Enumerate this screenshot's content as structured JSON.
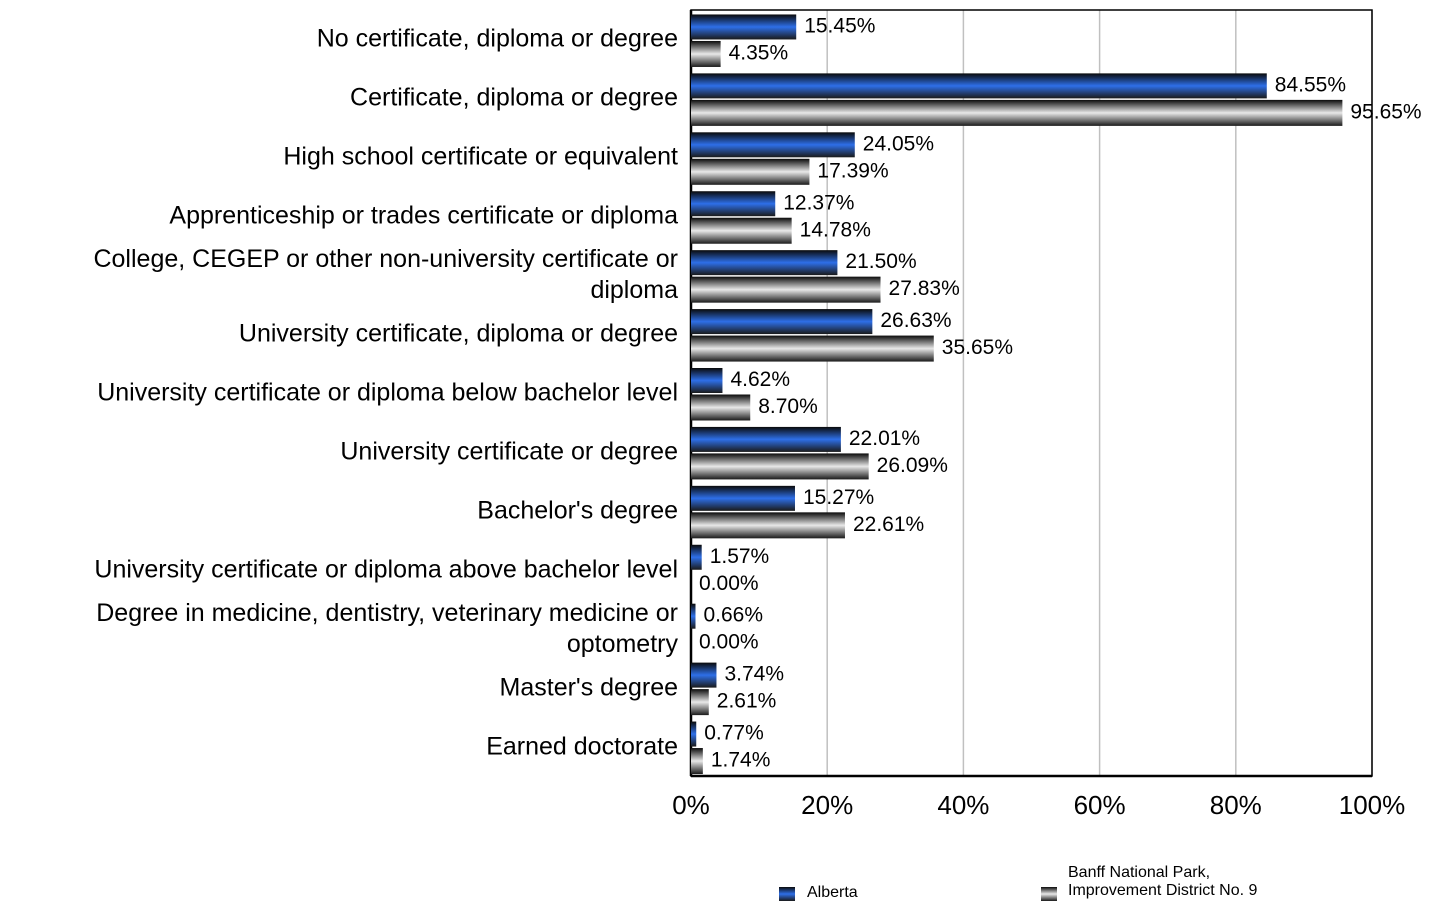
{
  "chart_data": {
    "type": "bar",
    "orientation": "horizontal",
    "categories": [
      "No certificate, diploma or degree",
      "Certificate, diploma or degree",
      "High school certificate or equivalent",
      "Apprenticeship or trades certificate or diploma",
      "College, CEGEP or other non-university certificate or diploma",
      "University certificate, diploma or degree",
      "University certificate or diploma below bachelor level",
      "University certificate or degree",
      "Bachelor's degree",
      "University certificate or diploma above bachelor level",
      "Degree in medicine, dentistry, veterinary medicine or optometry",
      "Master's degree",
      "Earned doctorate"
    ],
    "series": [
      {
        "name": "Alberta",
        "color": "#2e6fe8",
        "values": [
          15.45,
          84.55,
          24.05,
          12.37,
          21.5,
          26.63,
          4.62,
          22.01,
          15.27,
          1.57,
          0.66,
          3.74,
          0.77
        ],
        "value_labels": [
          "15.45%",
          "84.55%",
          "24.05%",
          "12.37%",
          "21.50%",
          "26.63%",
          "4.62%",
          "22.01%",
          "15.27%",
          "1.57%",
          "0.66%",
          "3.74%",
          "0.77%"
        ]
      },
      {
        "name": "Banff National Park, Improvement District No. 9",
        "color": "#e8e8e8",
        "values": [
          4.35,
          95.65,
          17.39,
          14.78,
          27.83,
          35.65,
          8.7,
          26.09,
          22.61,
          0.0,
          0.0,
          2.61,
          1.74
        ],
        "value_labels": [
          "4.35%",
          "95.65%",
          "17.39%",
          "14.78%",
          "27.83%",
          "35.65%",
          "8.70%",
          "26.09%",
          "22.61%",
          "0.00%",
          "0.00%",
          "2.61%",
          "1.74%"
        ]
      }
    ],
    "xlim": [
      0,
      100
    ],
    "xticks": [
      {
        "value": 0,
        "label": "0%"
      },
      {
        "value": 20,
        "label": "20%"
      },
      {
        "value": 40,
        "label": "40%"
      },
      {
        "value": 60,
        "label": "60%"
      },
      {
        "value": 80,
        "label": "80%"
      },
      {
        "value": 100,
        "label": "100%"
      }
    ],
    "grid": true,
    "legend": "bottom"
  }
}
